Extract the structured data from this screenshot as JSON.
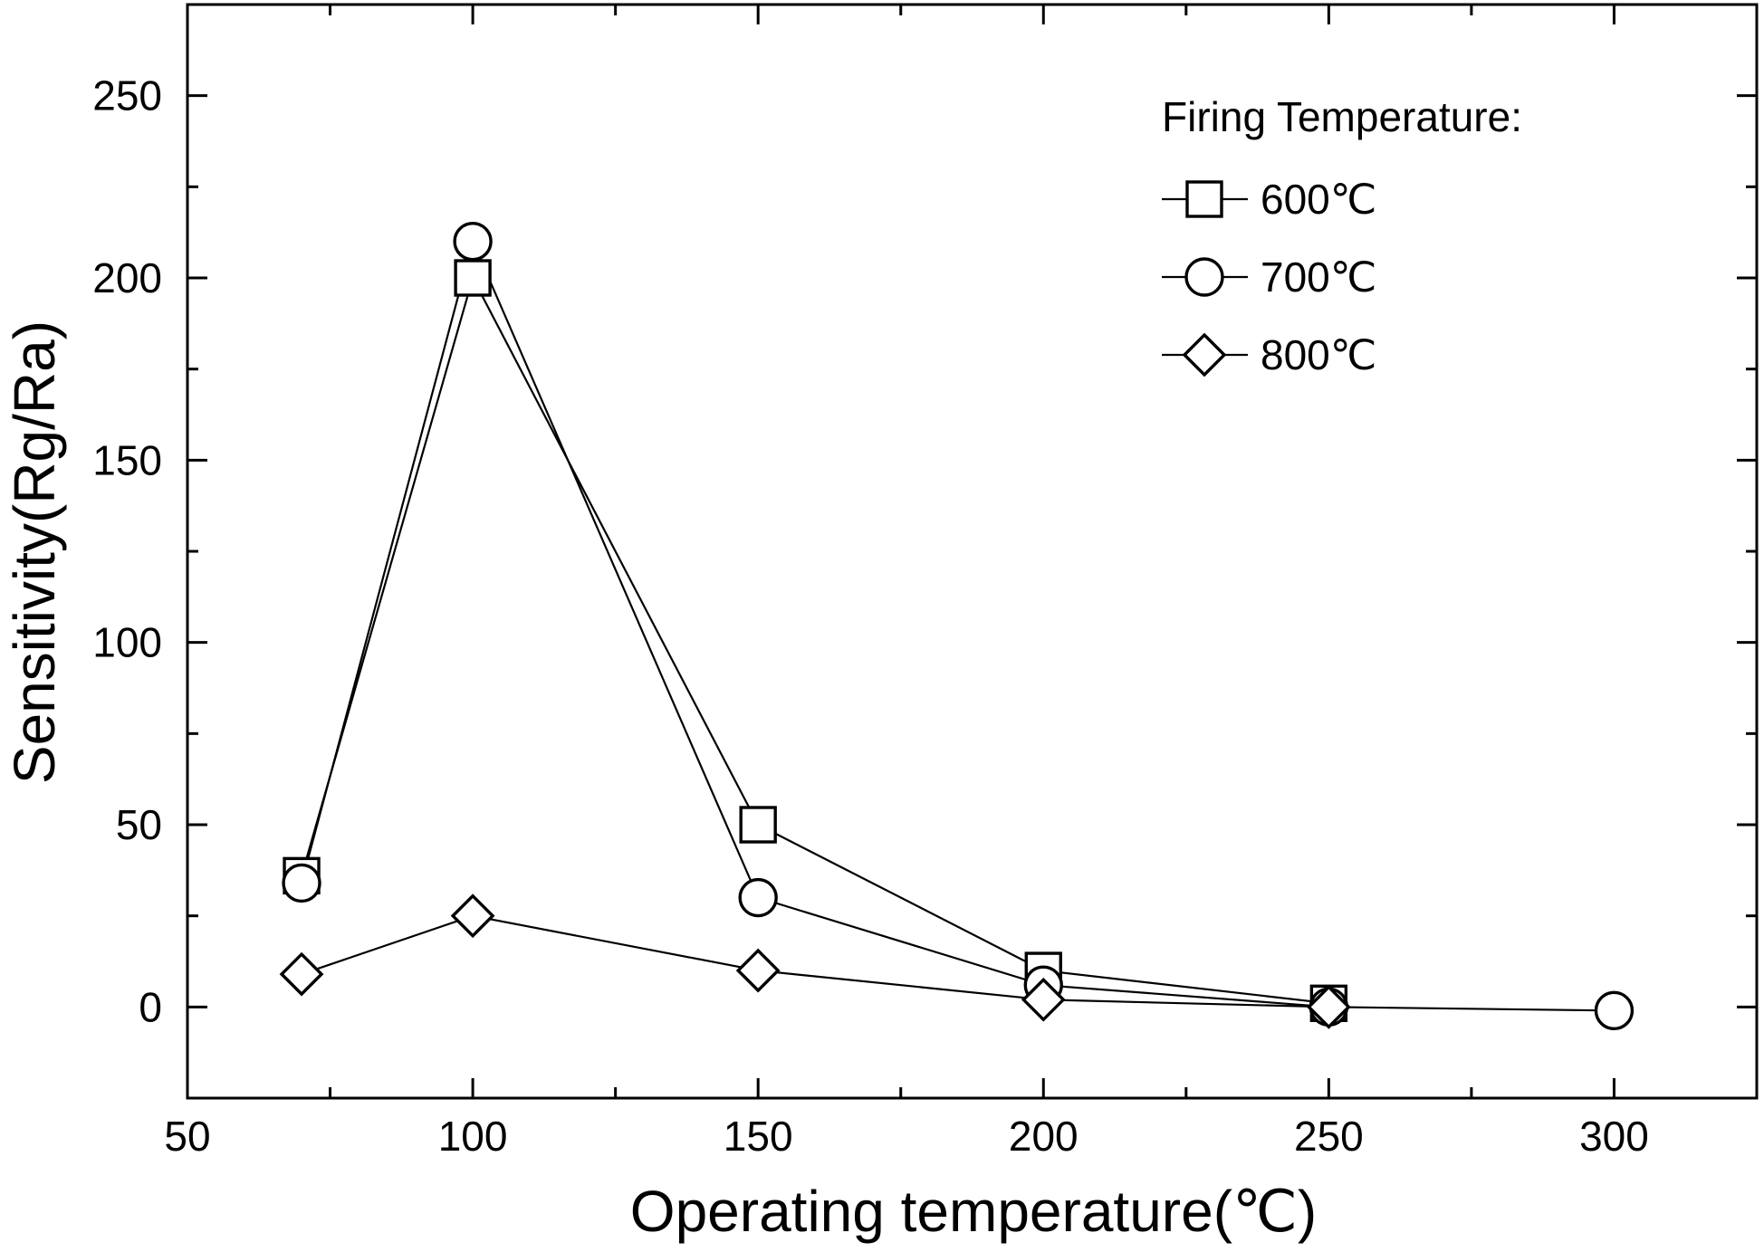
{
  "chart_data": {
    "type": "line",
    "title": "",
    "xlabel": "Operating temperature(℃)",
    "ylabel": "Sensitivity(Rg/Ra)",
    "xlim": [
      50,
      325
    ],
    "ylim": [
      -25,
      275
    ],
    "x_ticks": [
      50,
      100,
      150,
      200,
      250,
      300
    ],
    "y_ticks": [
      0,
      50,
      100,
      150,
      200,
      250
    ],
    "grid": false,
    "legend": {
      "title": "Firing Temperature:",
      "placement": "top-right"
    },
    "series": [
      {
        "name": "600℃",
        "marker": "square",
        "x": [
          70,
          100,
          150,
          200,
          250
        ],
        "y": [
          36,
          200,
          50,
          10,
          1
        ]
      },
      {
        "name": "700℃",
        "marker": "circle",
        "x": [
          70,
          100,
          150,
          200,
          250,
          300
        ],
        "y": [
          34,
          210,
          30,
          6,
          0,
          -1
        ]
      },
      {
        "name": "800℃",
        "marker": "diamond",
        "x": [
          70,
          100,
          150,
          200,
          250
        ],
        "y": [
          9,
          25,
          10,
          2,
          0
        ]
      }
    ]
  }
}
